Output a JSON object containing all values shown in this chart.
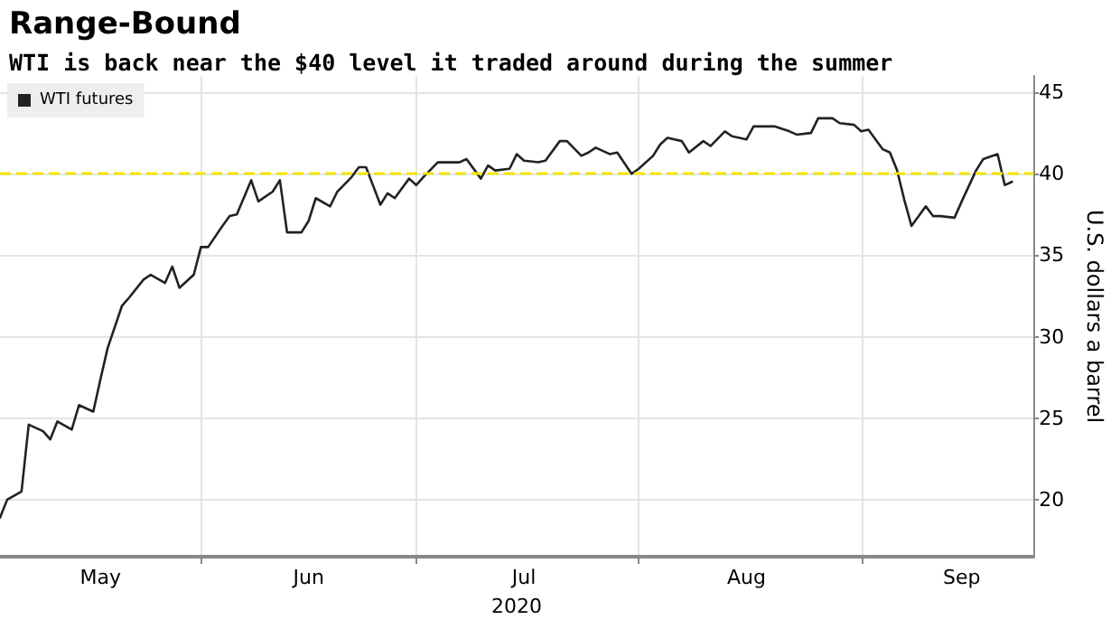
{
  "chart_data": {
    "type": "line",
    "title": "Range-Bound",
    "subtitle": "WTI is back near the $40 level it traded around during the summer",
    "xlabel": "2020",
    "ylabel": "U.S. dollars a barrel",
    "xlim": [
      "2020-05-04",
      "2020-09-25"
    ],
    "xticks": [
      {
        "value": "2020-05-18",
        "label": "May"
      },
      {
        "value": "2020-06-01",
        "label": null
      },
      {
        "value": "2020-06-16",
        "label": "Jun"
      },
      {
        "value": "2020-07-01",
        "label": null
      },
      {
        "value": "2020-07-16",
        "label": "Jul"
      },
      {
        "value": "2020-08-01",
        "label": null
      },
      {
        "value": "2020-08-16",
        "label": "Aug"
      },
      {
        "value": "2020-09-01",
        "label": null
      },
      {
        "value": "2020-09-15",
        "label": "Sep"
      }
    ],
    "ylim": [
      16.5,
      46
    ],
    "yticks": [
      20,
      25,
      30,
      35,
      40,
      45
    ],
    "grid": true,
    "legend": "top left",
    "marker": "none",
    "line_style": "solid",
    "ref_lines": [
      {
        "axis": "y",
        "value": 40,
        "color": "#f2e600",
        "line_style": "dashed"
      }
    ],
    "series": [
      {
        "name": "WTI futures",
        "color": "#222222",
        "x": [
          "2020-05-04",
          "2020-05-05",
          "2020-05-07",
          "2020-05-08",
          "2020-05-10",
          "2020-05-11",
          "2020-05-12",
          "2020-05-14",
          "2020-05-15",
          "2020-05-17",
          "2020-05-18",
          "2020-05-19",
          "2020-05-21",
          "2020-05-22",
          "2020-05-24",
          "2020-05-25",
          "2020-05-27",
          "2020-05-28",
          "2020-05-29",
          "2020-05-31",
          "2020-06-01",
          "2020-06-02",
          "2020-06-04",
          "2020-06-05",
          "2020-06-06",
          "2020-06-08",
          "2020-06-09",
          "2020-06-11",
          "2020-06-12",
          "2020-06-13",
          "2020-06-15",
          "2020-06-16",
          "2020-06-17",
          "2020-06-19",
          "2020-06-20",
          "2020-06-22",
          "2020-06-23",
          "2020-06-24",
          "2020-06-26",
          "2020-06-27",
          "2020-06-28",
          "2020-06-30",
          "2020-07-01",
          "2020-07-02",
          "2020-07-04",
          "2020-07-05",
          "2020-07-07",
          "2020-07-08",
          "2020-07-10",
          "2020-07-11",
          "2020-07-12",
          "2020-07-14",
          "2020-07-15",
          "2020-07-16",
          "2020-07-18",
          "2020-07-19",
          "2020-07-21",
          "2020-07-22",
          "2020-07-24",
          "2020-07-25",
          "2020-07-26",
          "2020-07-28",
          "2020-07-29",
          "2020-07-31",
          "2020-08-01",
          "2020-08-03",
          "2020-08-04",
          "2020-08-05",
          "2020-08-07",
          "2020-08-08",
          "2020-08-10",
          "2020-08-11",
          "2020-08-13",
          "2020-08-14",
          "2020-08-16",
          "2020-08-17",
          "2020-08-19",
          "2020-08-20",
          "2020-08-22",
          "2020-08-23",
          "2020-08-25",
          "2020-08-26",
          "2020-08-28",
          "2020-08-29",
          "2020-08-31",
          "2020-09-01",
          "2020-09-02",
          "2020-09-04",
          "2020-09-05",
          "2020-09-06",
          "2020-09-07",
          "2020-09-08",
          "2020-09-10",
          "2020-09-11",
          "2020-09-12",
          "2020-09-14",
          "2020-09-15",
          "2020-09-17",
          "2020-09-18",
          "2020-09-20",
          "2020-09-21",
          "2020-09-22"
        ],
        "values": [
          18.9,
          20.0,
          20.5,
          24.6,
          24.2,
          23.7,
          24.8,
          24.3,
          25.8,
          25.4,
          27.4,
          29.3,
          31.9,
          32.4,
          33.5,
          33.8,
          33.3,
          34.3,
          33.0,
          33.8,
          35.5,
          35.5,
          36.8,
          37.4,
          37.5,
          39.6,
          38.3,
          38.9,
          39.6,
          36.4,
          36.4,
          37.1,
          38.5,
          38.0,
          38.9,
          39.8,
          40.4,
          40.4,
          38.1,
          38.8,
          38.5,
          39.7,
          39.3,
          39.8,
          40.7,
          40.7,
          40.7,
          40.9,
          39.7,
          40.5,
          40.2,
          40.3,
          41.2,
          40.8,
          40.7,
          40.8,
          42.0,
          42.0,
          41.1,
          41.3,
          41.6,
          41.2,
          41.3,
          40.0,
          40.3,
          41.1,
          41.8,
          42.2,
          42.0,
          41.3,
          42.0,
          41.7,
          42.6,
          42.3,
          42.1,
          42.9,
          42.9,
          42.9,
          42.6,
          42.4,
          42.5,
          43.4,
          43.4,
          43.1,
          43.0,
          42.6,
          42.7,
          41.5,
          41.3,
          40.2,
          38.4,
          36.8,
          38.0,
          37.4,
          37.4,
          37.3,
          38.3,
          40.2,
          40.9,
          41.2,
          39.3,
          39.5
        ]
      }
    ]
  }
}
